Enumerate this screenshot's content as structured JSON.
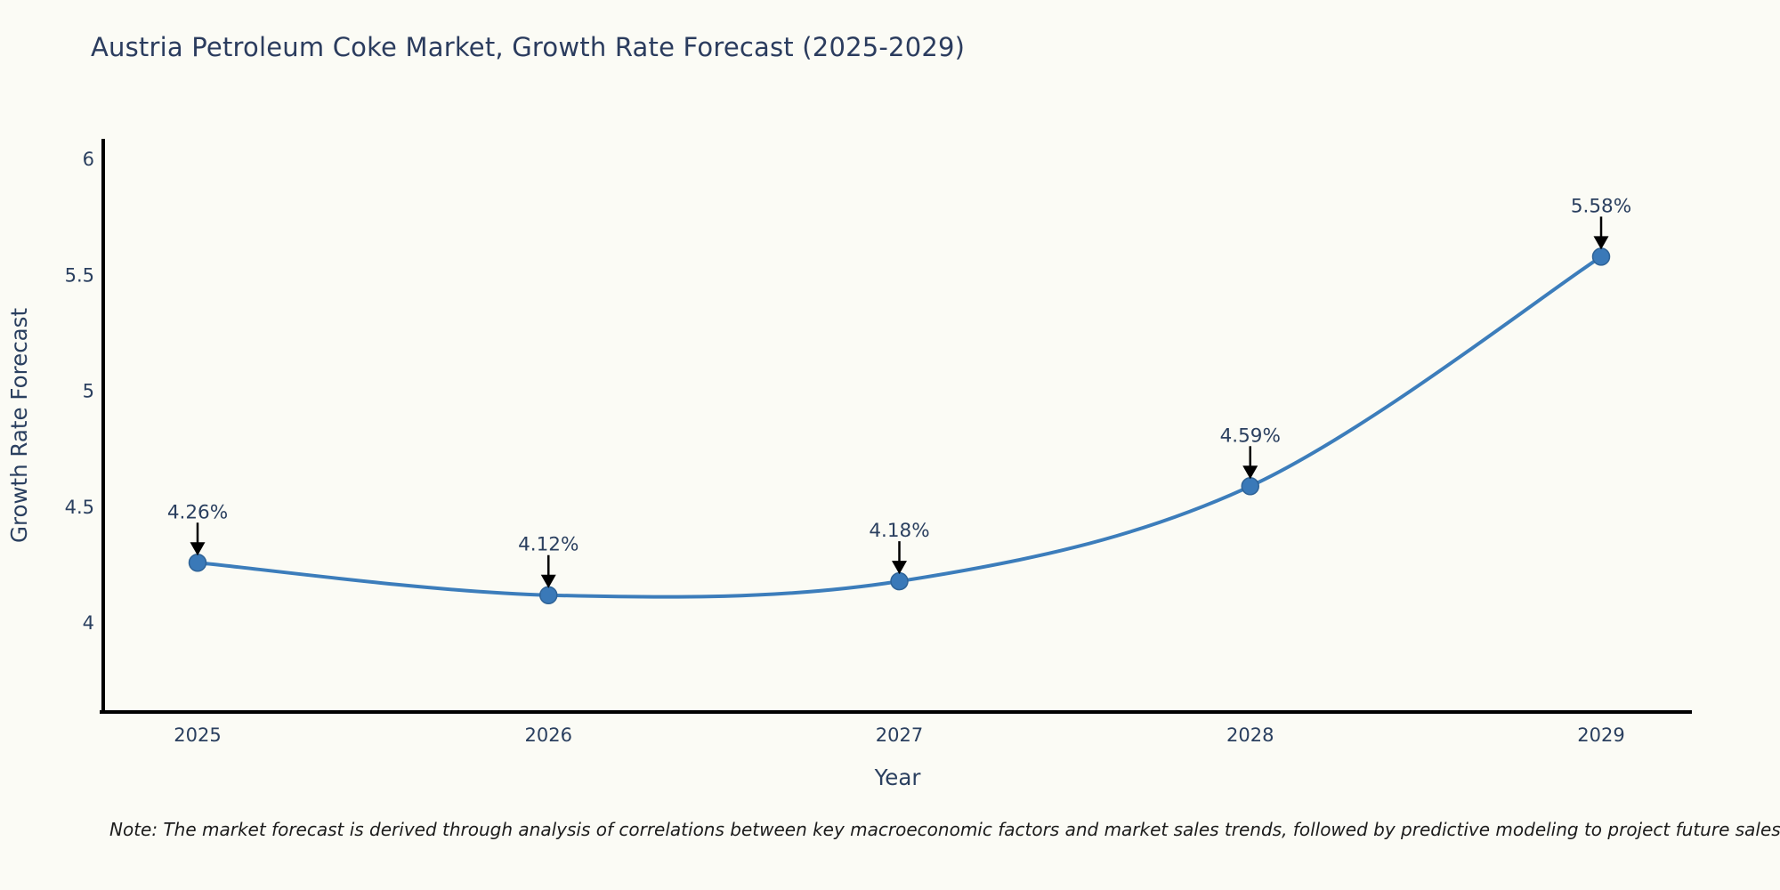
{
  "title": "Austria Petroleum Coke Market, Growth Rate Forecast (2025-2029)",
  "note": "Note: The market forecast is derived through analysis of correlations between key macroeconomic factors and market sales trends, followed by predictive modeling to project future sales",
  "chart_data": {
    "type": "line",
    "title": "Austria Petroleum Coke Market, Growth Rate Forecast (2025-2029)",
    "xlabel": "Year",
    "ylabel": "Growth Rate Forecast",
    "categories": [
      "2025",
      "2026",
      "2027",
      "2028",
      "2029"
    ],
    "series": [
      {
        "name": "Growth Rate Forecast",
        "values": [
          4.26,
          4.12,
          4.18,
          4.59,
          5.58
        ]
      }
    ],
    "point_labels": [
      "4.26%",
      "4.12%",
      "4.18%",
      "4.59%",
      "5.58%"
    ],
    "yticks": [
      4,
      4.5,
      5,
      5.5,
      6
    ],
    "ylim": [
      3.62,
      6.08
    ],
    "grid": false,
    "legend": false,
    "smooth": true,
    "colors": {
      "line": "#3c7dbb",
      "marker": "#3a79b8",
      "marker_edge": "#2f6397",
      "axis": "#000000",
      "tick_text": "#2a3f5f",
      "annotation_text": "#2a3f5f",
      "arrow": "#000000"
    }
  }
}
